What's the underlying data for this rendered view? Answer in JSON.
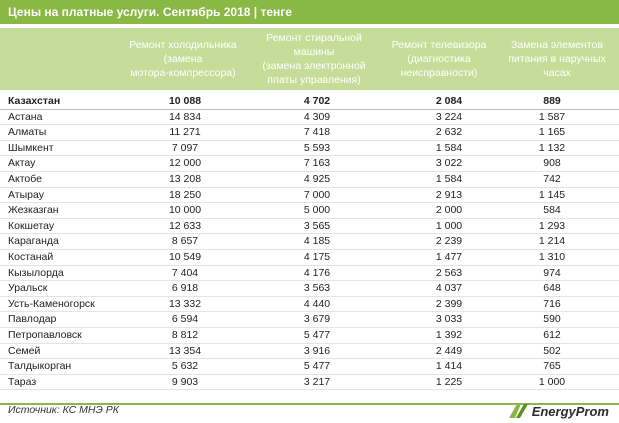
{
  "title": "Цены на платные услуги. Сентябрь 2018 | тенге",
  "columns": [
    {
      "lines": [
        "Ремонт холодильника",
        "(замена",
        "мотора-компрессора)"
      ]
    },
    {
      "lines": [
        "Ремонт стиральной",
        "машины",
        "(замена электронной",
        "платы управления)"
      ]
    },
    {
      "lines": [
        "Ремонт телевизора",
        "(диагностика",
        "неисправности)"
      ]
    },
    {
      "lines": [
        "Замена элементов",
        "питания в наручных",
        "часах"
      ]
    }
  ],
  "rows": [
    {
      "name": "Казахстан",
      "values": [
        "10 088",
        "4 702",
        "2 084",
        "889"
      ]
    },
    {
      "name": "Астана",
      "values": [
        "14 834",
        "4 309",
        "3 224",
        "1 587"
      ]
    },
    {
      "name": "Алматы",
      "values": [
        "11 271",
        "7 418",
        "2 632",
        "1 165"
      ]
    },
    {
      "name": "Шымкент",
      "values": [
        "7 097",
        "5 593",
        "1 584",
        "1 132"
      ]
    },
    {
      "name": "Актау",
      "values": [
        "12 000",
        "7 163",
        "3 022",
        "908"
      ]
    },
    {
      "name": "Актобе",
      "values": [
        "13 208",
        "4 925",
        "1 584",
        "742"
      ]
    },
    {
      "name": "Атырау",
      "values": [
        "18 250",
        "7 000",
        "2 913",
        "1 145"
      ]
    },
    {
      "name": "Жезказган",
      "values": [
        "10 000",
        "5 000",
        "2 000",
        "584"
      ]
    },
    {
      "name": "Кокшетау",
      "values": [
        "12 633",
        "3 565",
        "1 000",
        "1 293"
      ]
    },
    {
      "name": "Караганда",
      "values": [
        "8 657",
        "4 185",
        "2 239",
        "1 214"
      ]
    },
    {
      "name": "Костанай",
      "values": [
        "10 549",
        "4 175",
        "1 477",
        "1 310"
      ]
    },
    {
      "name": "Кызылорда",
      "values": [
        "7 404",
        "4 176",
        "2 563",
        "974"
      ]
    },
    {
      "name": "Уральск",
      "values": [
        "6 918",
        "3 563",
        "4 037",
        "648"
      ]
    },
    {
      "name": "Усть-Каменогорск",
      "values": [
        "13 332",
        "4 440",
        "2 399",
        "716"
      ]
    },
    {
      "name": "Павлодар",
      "values": [
        "6 594",
        "3 679",
        "3 033",
        "590"
      ]
    },
    {
      "name": "Петропавловск",
      "values": [
        "8 812",
        "5 477",
        "1 392",
        "612"
      ]
    },
    {
      "name": "Семей",
      "values": [
        "13 354",
        "3 916",
        "2 449",
        "502"
      ]
    },
    {
      "name": "Талдыкорган",
      "values": [
        "5 632",
        "5 477",
        "1 414",
        "765"
      ]
    },
    {
      "name": "Тараз",
      "values": [
        "9 903",
        "3 217",
        "1 225",
        "1 000"
      ]
    }
  ],
  "source": "Источник: КС МНЭ РК",
  "logo": {
    "text": "EnergyProm",
    "icon": "energyprom-logo-icon",
    "color": "#8ab844"
  },
  "colors": {
    "accent": "#8ab844",
    "header": "#c6dd9a"
  }
}
